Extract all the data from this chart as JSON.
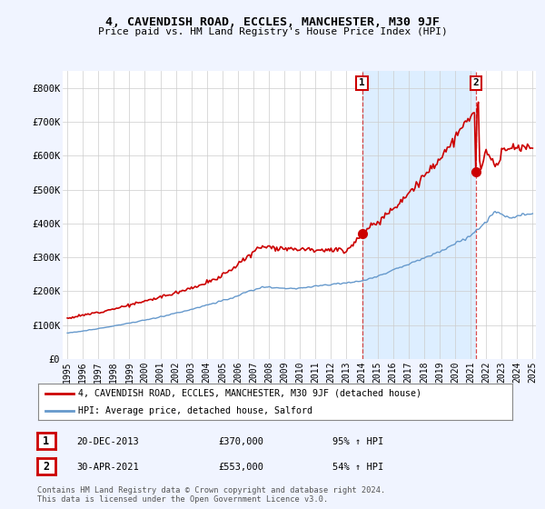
{
  "title": "4, CAVENDISH ROAD, ECCLES, MANCHESTER, M30 9JF",
  "subtitle": "Price paid vs. HM Land Registry's House Price Index (HPI)",
  "legend_line1": "4, CAVENDISH ROAD, ECCLES, MANCHESTER, M30 9JF (detached house)",
  "legend_line2": "HPI: Average price, detached house, Salford",
  "annotation1_date": "20-DEC-2013",
  "annotation1_price": "£370,000",
  "annotation1_pct": "95% ↑ HPI",
  "annotation2_date": "30-APR-2021",
  "annotation2_price": "£553,000",
  "annotation2_pct": "54% ↑ HPI",
  "footer": "Contains HM Land Registry data © Crown copyright and database right 2024.\nThis data is licensed under the Open Government Licence v3.0.",
  "red_color": "#cc0000",
  "blue_color": "#6699cc",
  "shade_color": "#ddeeff",
  "background_color": "#f0f4ff",
  "plot_bg": "#ffffff",
  "ylim": [
    0,
    850000
  ],
  "yticks": [
    0,
    100000,
    200000,
    300000,
    400000,
    500000,
    600000,
    700000,
    800000
  ],
  "ytick_labels": [
    "£0",
    "£100K",
    "£200K",
    "£300K",
    "£400K",
    "£500K",
    "£600K",
    "£700K",
    "£800K"
  ],
  "sale1_year": 2014.0,
  "sale1_price": 370000,
  "sale2_year": 2021.33,
  "sale2_price": 553000,
  "xmin": 1995,
  "xmax": 2025
}
